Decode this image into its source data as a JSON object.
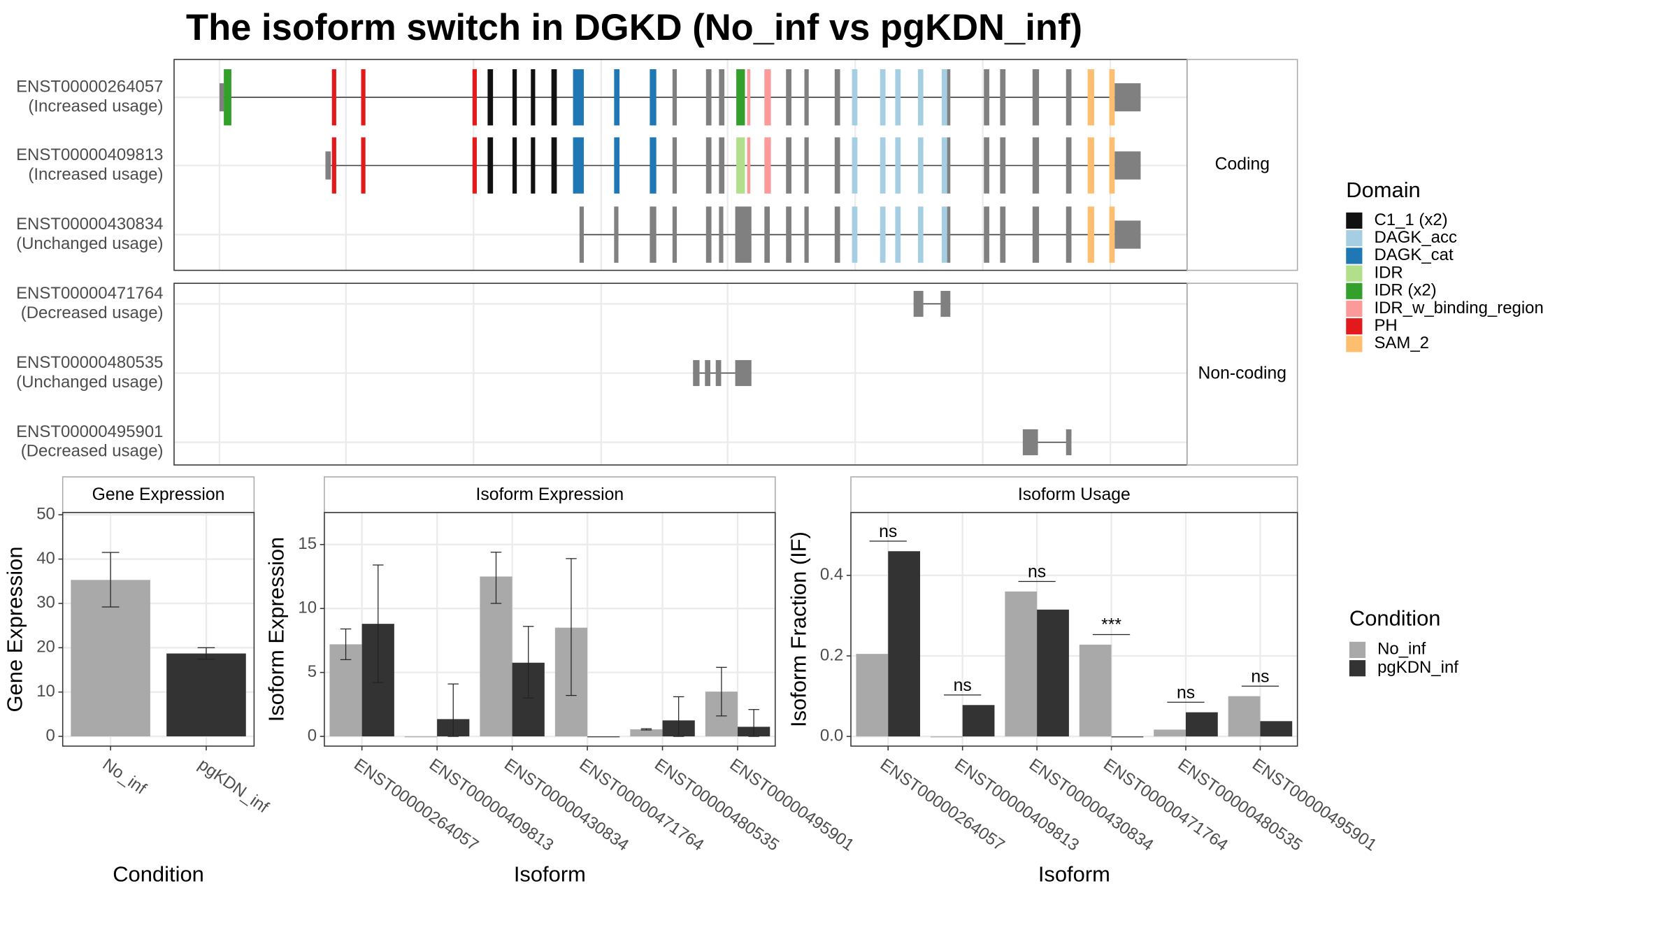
{
  "title": "The isoform switch in DGKD (No_inf vs pgKDN_inf)",
  "structure": {
    "transcripts": [
      {
        "name": "ENST00000264057",
        "usage": "(Increased usage)"
      },
      {
        "name": "ENST00000409813",
        "usage": "(Increased usage)"
      },
      {
        "name": "ENST00000430834",
        "usage": "(Unchanged usage)"
      },
      {
        "name": "ENST00000471764",
        "usage": "(Decreased usage)"
      },
      {
        "name": "ENST00000480535",
        "usage": "(Unchanged usage)"
      },
      {
        "name": "ENST00000495901",
        "usage": "(Decreased usage)"
      }
    ],
    "groups": [
      "Coding",
      "Non-coding"
    ],
    "legend_title": "Domain",
    "domains": [
      {
        "name": "C1_1 (x2)",
        "color": "#111111"
      },
      {
        "name": "DAGK_acc",
        "color": "#a6cee3"
      },
      {
        "name": "DAGK_cat",
        "color": "#1f78b4"
      },
      {
        "name": "IDR",
        "color": "#b2df8a"
      },
      {
        "name": "IDR (x2)",
        "color": "#33a02c"
      },
      {
        "name": "IDR_w_binding_region",
        "color": "#fb9a99"
      },
      {
        "name": "PH",
        "color": "#e31a1c"
      },
      {
        "name": "SAM_2",
        "color": "#fdbf6f"
      }
    ]
  },
  "chart_data": [
    {
      "type": "bar",
      "title": "Gene Expression",
      "ylabel": "Gene Expression",
      "xlabel": "Condition",
      "categories": [
        "No_inf",
        "pgKDN_inf"
      ],
      "values": [
        35.3,
        18.7
      ],
      "lower": [
        29.2,
        17.4
      ],
      "upper": [
        41.5,
        20.0
      ],
      "colors": [
        "#a9a9a9",
        "#333333"
      ],
      "ylim": [
        -2.2,
        50.5
      ],
      "yticks": [
        0,
        10,
        20,
        30,
        40,
        50
      ],
      "grid": true
    },
    {
      "type": "grouped_bar",
      "title": "Isoform Expression",
      "ylabel": "Isoform Expression",
      "xlabel": "Isoform",
      "categories": [
        "ENST00000264057",
        "ENST00000409813",
        "ENST00000430834",
        "ENST00000471764",
        "ENST00000480535",
        "ENST00000495901"
      ],
      "series": [
        {
          "name": "No_inf",
          "color": "#a9a9a9",
          "values": [
            7.2,
            0,
            12.5,
            8.5,
            0.55,
            3.5
          ],
          "lower": [
            6.0,
            null,
            10.4,
            3.2,
            0.5,
            1.6
          ],
          "upper": [
            8.4,
            null,
            14.4,
            13.9,
            0.6,
            5.4
          ]
        },
        {
          "name": "pgKDN_inf",
          "color": "#333333",
          "values": [
            8.8,
            1.35,
            5.76,
            0,
            1.25,
            0.75
          ],
          "lower": [
            4.2,
            0,
            3.0,
            null,
            0,
            0
          ],
          "upper": [
            13.4,
            4.1,
            8.6,
            null,
            3.1,
            2.1
          ]
        }
      ],
      "ylim": [
        -0.76,
        17.5
      ],
      "yticks": [
        0,
        5,
        10,
        15
      ],
      "grid": true
    },
    {
      "type": "grouped_bar",
      "title": "Isoform Usage",
      "ylabel": "Isoform Fraction (IF)",
      "xlabel": "Isoform",
      "categories": [
        "ENST00000264057",
        "ENST00000409813",
        "ENST00000430834",
        "ENST00000471764",
        "ENST00000480535",
        "ENST00000495901"
      ],
      "series": [
        {
          "name": "No_inf",
          "color": "#a9a9a9",
          "values": [
            0.205,
            0,
            0.36,
            0.228,
            0.017,
            0.1
          ]
        },
        {
          "name": "pgKDN_inf",
          "color": "#333333",
          "values": [
            0.46,
            0.078,
            0.315,
            0,
            0.06,
            0.038
          ]
        }
      ],
      "annotations": [
        "ns",
        "ns",
        "ns",
        "***",
        "ns",
        "ns"
      ],
      "legend_title": "Condition",
      "ylim": [
        -0.024,
        0.556
      ],
      "yticks": [
        {
          "value": 0,
          "label": "0.0"
        },
        0.2,
        0.4
      ],
      "grid": true
    }
  ]
}
